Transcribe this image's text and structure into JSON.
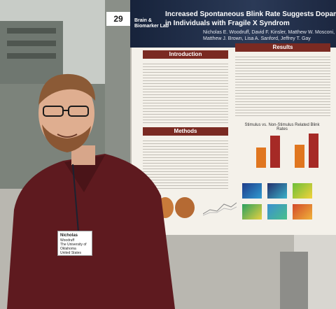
{
  "poster": {
    "number": "29",
    "title_line1": "Increased Spontaneous Blink Rate Suggests Dopaminergic F",
    "title_line2": "in Individuals with Fragile X Syndrom",
    "authors_line1": "Nicholas E. Woodruff, David F. Kinsler, Matthew W. Mosconi, Jun Wang, Sarah K. Perkins",
    "authors_line2": "Matthew J. Brown, Lisa A. Sanford, Jeffrey T. Gay",
    "lab_logo_line1": "Brain &",
    "lab_logo_line2": "Biomarker Lab",
    "sections": {
      "introduction": "Introduction",
      "methods": "Methods",
      "results": "Results"
    },
    "figure_caption": "Stimulus vs. Non-Stimulus Related Blink Rates"
  },
  "badge": {
    "name": "Nicholas",
    "line2": "Woodruff",
    "line3": "The University of Oklahoma",
    "line4": "United States"
  },
  "chart_data": {
    "type": "bar",
    "title": "Stimulus vs. Non-Stimulus Related Blink Rates",
    "series": [
      {
        "values": [
          9,
          14
        ]
      },
      {
        "values": [
          10,
          15
        ]
      }
    ]
  },
  "colors": {
    "header_navy": "#1c2740",
    "section_bar": "#7a2a22",
    "bar_orange": "#e0761f",
    "bar_red": "#a62a26",
    "shirt": "#5e1a1f"
  }
}
